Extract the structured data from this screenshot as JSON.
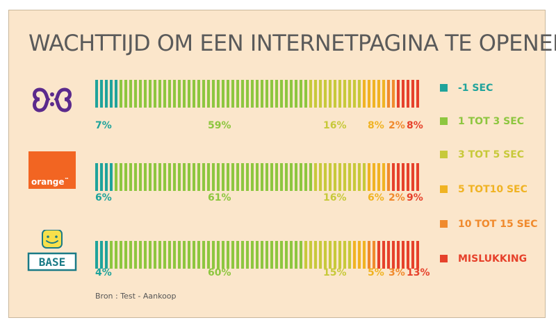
{
  "chart_data": {
    "type": "bar",
    "stacked": true,
    "orientation": "horizontal",
    "title": "WACHTTIJD OM EEN INTERNETPAGINA TE OPENEN",
    "categories": [
      "Proximus",
      "Orange",
      "BASE"
    ],
    "series": [
      {
        "name": "-1 SEC",
        "color": "#1fa39b",
        "values": [
          7,
          6,
          4
        ]
      },
      {
        "name": "1 TOT 3 SEC",
        "color": "#8dc63f",
        "values": [
          59,
          61,
          60
        ]
      },
      {
        "name": "3 TOT 5 SEC",
        "color": "#c7c93a",
        "values": [
          16,
          16,
          15
        ]
      },
      {
        "name": "5 TOT10 SEC",
        "color": "#f0b323",
        "values": [
          8,
          6,
          5
        ]
      },
      {
        "name": "10 TOT 15 SEC",
        "color": "#f08a2d",
        "values": [
          2,
          2,
          3
        ]
      },
      {
        "name": "MISLUKKING",
        "color": "#e6412b",
        "values": [
          8,
          9,
          13
        ]
      }
    ],
    "labels": [
      [
        "7%",
        "59%",
        "16%",
        "8%",
        "2%",
        "8%"
      ],
      [
        "6%",
        "61%",
        "16%",
        "6%",
        "2%",
        "9%"
      ],
      [
        "4%",
        "60%",
        "15%",
        "5%",
        "3%",
        "13%"
      ]
    ],
    "legend_position": "right"
  },
  "logos": {
    "orange_text": "orange",
    "orange_tm": "™",
    "base_text": "BASE"
  },
  "source": "Bron : Test - Aankoop"
}
